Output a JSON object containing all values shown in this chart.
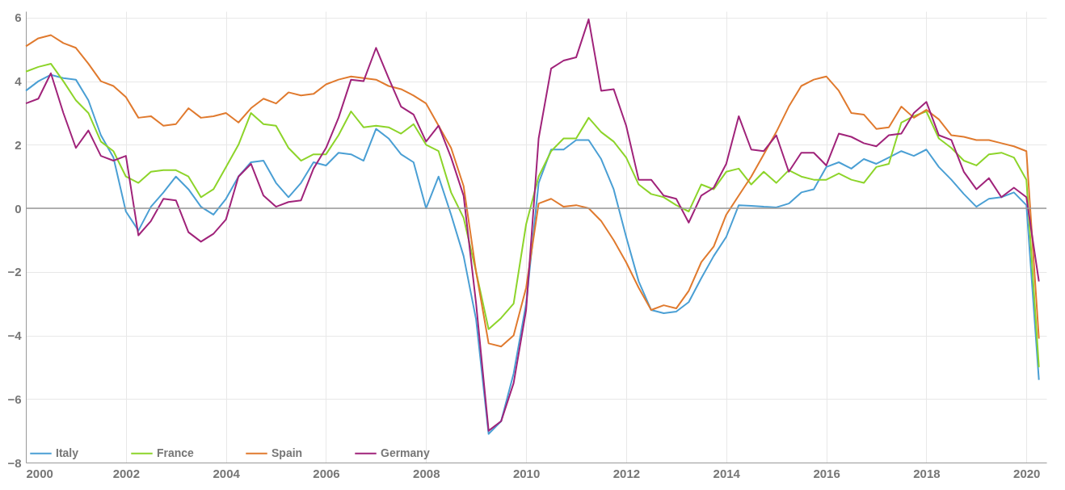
{
  "chart_data": {
    "type": "line",
    "x": [
      2000,
      2000.25,
      2000.5,
      2000.75,
      2001,
      2001.25,
      2001.5,
      2001.75,
      2002,
      2002.25,
      2002.5,
      2002.75,
      2003,
      2003.25,
      2003.5,
      2003.75,
      2004,
      2004.25,
      2004.5,
      2004.75,
      2005,
      2005.25,
      2005.5,
      2005.75,
      2006,
      2006.25,
      2006.5,
      2006.75,
      2007,
      2007.25,
      2007.5,
      2007.75,
      2008,
      2008.25,
      2008.5,
      2008.75,
      2009,
      2009.25,
      2009.5,
      2009.75,
      2010,
      2010.25,
      2010.5,
      2010.75,
      2011,
      2011.25,
      2011.5,
      2011.75,
      2012,
      2012.25,
      2012.5,
      2012.75,
      2013,
      2013.25,
      2013.5,
      2013.75,
      2014,
      2014.25,
      2014.5,
      2014.75,
      2015,
      2015.25,
      2015.5,
      2015.75,
      2016,
      2016.25,
      2016.5,
      2016.75,
      2017,
      2017.25,
      2017.5,
      2017.75,
      2018,
      2018.25,
      2018.5,
      2018.75,
      2019,
      2019.25,
      2019.5,
      2019.75,
      2020,
      2020.25
    ],
    "series": [
      {
        "name": "Italy",
        "color": "#4a9fd4",
        "values": [
          3.7,
          4.0,
          4.2,
          4.1,
          4.05,
          3.4,
          2.3,
          1.6,
          -0.1,
          -0.7,
          0.05,
          0.5,
          1.0,
          0.6,
          0.05,
          -0.2,
          0.3,
          1.0,
          1.45,
          1.5,
          0.8,
          0.35,
          0.8,
          1.45,
          1.35,
          1.75,
          1.7,
          1.5,
          2.5,
          2.2,
          1.7,
          1.45,
          0.0,
          1.0,
          -0.2,
          -1.5,
          -3.5,
          -7.1,
          -6.7,
          -5.2,
          -3.0,
          0.8,
          1.85,
          1.85,
          2.15,
          2.15,
          1.55,
          0.6,
          -0.9,
          -2.3,
          -3.2,
          -3.3,
          -3.25,
          -2.95,
          -2.2,
          -1.5,
          -0.9,
          0.1,
          0.08,
          0.05,
          0.03,
          0.15,
          0.5,
          0.6,
          1.3,
          1.45,
          1.25,
          1.55,
          1.4,
          1.6,
          1.8,
          1.65,
          1.85,
          1.3,
          0.9,
          0.45,
          0.05,
          0.3,
          0.35,
          0.5,
          0.1,
          -5.4
        ]
      },
      {
        "name": "France",
        "color": "#8dd42a",
        "values": [
          4.3,
          4.45,
          4.55,
          4.0,
          3.4,
          3.0,
          2.1,
          1.8,
          1.0,
          0.8,
          1.15,
          1.2,
          1.2,
          1.0,
          0.35,
          0.6,
          1.3,
          2.0,
          3.0,
          2.65,
          2.6,
          1.9,
          1.5,
          1.7,
          1.7,
          2.3,
          3.05,
          2.55,
          2.6,
          2.55,
          2.35,
          2.65,
          2.0,
          1.8,
          0.5,
          -0.3,
          -2.0,
          -3.8,
          -3.45,
          -3.0,
          -0.5,
          1.0,
          1.8,
          2.2,
          2.2,
          2.85,
          2.4,
          2.1,
          1.6,
          0.75,
          0.45,
          0.35,
          0.1,
          -0.1,
          0.75,
          0.6,
          1.15,
          1.25,
          0.75,
          1.15,
          0.8,
          1.2,
          1.0,
          0.9,
          0.9,
          1.1,
          0.9,
          0.8,
          1.3,
          1.4,
          2.7,
          2.9,
          3.05,
          2.2,
          1.9,
          1.5,
          1.35,
          1.7,
          1.75,
          1.6,
          0.9,
          -5.0
        ]
      },
      {
        "name": "Spain",
        "color": "#e07a2e",
        "values": [
          5.1,
          5.35,
          5.45,
          5.2,
          5.05,
          4.55,
          4.0,
          3.85,
          3.5,
          2.85,
          2.9,
          2.6,
          2.65,
          3.15,
          2.85,
          2.9,
          3.0,
          2.7,
          3.15,
          3.45,
          3.3,
          3.65,
          3.55,
          3.6,
          3.9,
          4.05,
          4.15,
          4.1,
          4.05,
          3.85,
          3.75,
          3.55,
          3.3,
          2.6,
          1.9,
          0.7,
          -2.0,
          -4.25,
          -4.35,
          -4.0,
          -2.5,
          0.15,
          0.3,
          0.05,
          0.1,
          0.0,
          -0.4,
          -1.0,
          -1.7,
          -2.5,
          -3.2,
          -3.05,
          -3.15,
          -2.6,
          -1.7,
          -1.2,
          -0.2,
          0.4,
          1.0,
          1.7,
          2.4,
          3.2,
          3.85,
          4.05,
          4.15,
          3.7,
          3.0,
          2.95,
          2.5,
          2.55,
          3.2,
          2.85,
          3.1,
          2.8,
          2.3,
          2.25,
          2.15,
          2.15,
          2.05,
          1.95,
          1.8,
          -4.1
        ]
      },
      {
        "name": "Germany",
        "color": "#a0237a",
        "values": [
          3.3,
          3.45,
          4.25,
          3.0,
          1.9,
          2.45,
          1.65,
          1.5,
          1.65,
          -0.85,
          -0.4,
          0.3,
          0.25,
          -0.75,
          -1.05,
          -0.8,
          -0.35,
          1.0,
          1.4,
          0.4,
          0.05,
          0.2,
          0.25,
          1.25,
          1.9,
          2.85,
          4.05,
          4.0,
          5.05,
          4.1,
          3.2,
          2.95,
          2.1,
          2.6,
          1.6,
          0.4,
          -3.0,
          -7.0,
          -6.7,
          -5.5,
          -3.2,
          2.2,
          4.4,
          4.65,
          4.75,
          5.95,
          3.7,
          3.75,
          2.6,
          0.9,
          0.9,
          0.4,
          0.3,
          -0.45,
          0.4,
          0.65,
          1.4,
          2.9,
          1.85,
          1.8,
          2.3,
          1.15,
          1.75,
          1.75,
          1.35,
          2.35,
          2.25,
          2.05,
          1.95,
          2.3,
          2.35,
          3.0,
          3.35,
          2.3,
          2.15,
          1.15,
          0.6,
          0.95,
          0.35,
          0.65,
          0.35,
          -2.3
        ]
      }
    ],
    "xlim": [
      2000,
      2020.4
    ],
    "xticks": [
      2000,
      2002,
      2004,
      2006,
      2008,
      2010,
      2012,
      2014,
      2016,
      2018,
      2020
    ],
    "ylim": [
      -8,
      6.2
    ],
    "yticks": [
      -8,
      -6,
      -4,
      -2,
      0,
      2,
      4,
      6
    ],
    "ref_lines": [
      {
        "axis": "y",
        "value": 0,
        "color": "#999999"
      }
    ],
    "grid": true,
    "legend": "bottom left",
    "marker": "none",
    "line_style": "solid"
  }
}
